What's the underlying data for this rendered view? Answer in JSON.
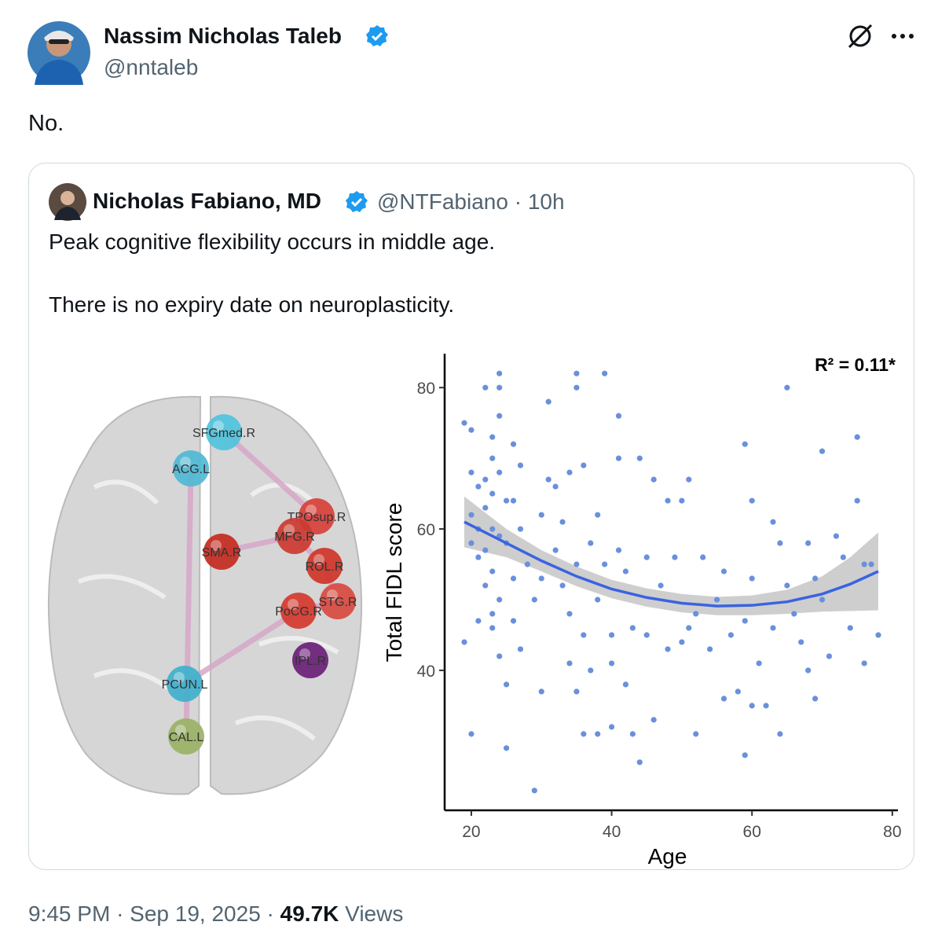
{
  "tweet": {
    "author": {
      "name": "Nassim Nicholas Taleb",
      "handle": "@nntaleb"
    },
    "text": "No.",
    "time": "9:45 PM",
    "date": "Sep 19, 2025",
    "separator": "·",
    "views_count": "49.7K",
    "views_label": "Views"
  },
  "quote": {
    "author": {
      "name": "Nicholas Fabiano, MD",
      "handle": "@NTFabiano",
      "age": "10h"
    },
    "text": [
      "Peak cognitive flexibility occurs in middle age.",
      "There is no expiry date on neuroplasticity."
    ]
  },
  "brain": {
    "nodes": [
      {
        "label": "SFGmed.R",
        "color": "#4fc3dc"
      },
      {
        "label": "ACG.L",
        "color": "#4fb8d4"
      },
      {
        "label": "TPOsup.R",
        "color": "#d8403a"
      },
      {
        "label": "MFG.R",
        "color": "#cc3a30"
      },
      {
        "label": "SMA.R",
        "color": "#c42a20"
      },
      {
        "label": "ROL.R",
        "color": "#cf3428"
      },
      {
        "label": "STG.R",
        "color": "#d84a40"
      },
      {
        "label": "PoCG.R",
        "color": "#d43a2e"
      },
      {
        "label": "IPL.R",
        "color": "#6a1f78"
      },
      {
        "label": "PCUN.L",
        "color": "#3fb0cc"
      },
      {
        "label": "CAL.L",
        "color": "#9ab266"
      }
    ]
  },
  "chart_data": {
    "type": "scatter",
    "annotation": "R² = 0.11*",
    "x_label": "Age",
    "y_label": "Total FIDL score",
    "xlim": [
      16.2,
      80.8
    ],
    "ylim": [
      20.2,
      84.8
    ],
    "xticks": [
      20,
      40,
      60,
      80
    ],
    "yticks": [
      40,
      60,
      80
    ],
    "color": "#6a90dc",
    "x": [
      19,
      19,
      20,
      20,
      20,
      20,
      20,
      21,
      21,
      21,
      21,
      22,
      22,
      22,
      22,
      22,
      23,
      23,
      23,
      23,
      23,
      23,
      23,
      24,
      24,
      24,
      24,
      24,
      24,
      24,
      25,
      25,
      25,
      25,
      26,
      26,
      26,
      26,
      27,
      27,
      27,
      28,
      29,
      29,
      30,
      30,
      30,
      31,
      31,
      32,
      32,
      33,
      33,
      34,
      34,
      34,
      35,
      35,
      35,
      35,
      36,
      36,
      36,
      37,
      37,
      38,
      38,
      38,
      39,
      39,
      40,
      40,
      40,
      41,
      41,
      41,
      42,
      42,
      43,
      43,
      44,
      44,
      45,
      45,
      46,
      46,
      47,
      48,
      48,
      49,
      50,
      50,
      51,
      51,
      52,
      52,
      53,
      54,
      55,
      56,
      56,
      57,
      58,
      59,
      59,
      59,
      60,
      60,
      60,
      61,
      62,
      63,
      63,
      64,
      64,
      65,
      65,
      66,
      67,
      68,
      68,
      69,
      69,
      70,
      70,
      71,
      72,
      73,
      74,
      75,
      75,
      76,
      76,
      77,
      78
    ],
    "y": [
      75,
      44,
      74,
      31,
      68,
      62,
      58,
      66,
      60,
      56,
      47,
      80,
      67,
      63,
      57,
      52,
      73,
      70,
      65,
      60,
      54,
      48,
      46,
      82,
      80,
      76,
      68,
      59,
      50,
      42,
      64,
      58,
      38,
      29,
      72,
      64,
      53,
      47,
      69,
      60,
      43,
      55,
      23,
      50,
      62,
      53,
      37,
      78,
      67,
      66,
      57,
      61,
      52,
      68,
      48,
      41,
      82,
      80,
      55,
      37,
      69,
      45,
      31,
      58,
      40,
      62,
      50,
      31,
      82,
      55,
      45,
      41,
      32,
      76,
      70,
      57,
      54,
      38,
      46,
      31,
      70,
      27,
      56,
      45,
      67,
      33,
      52,
      64,
      43,
      56,
      64,
      44,
      67,
      46,
      48,
      31,
      56,
      43,
      50,
      54,
      36,
      45,
      37,
      72,
      47,
      28,
      64,
      53,
      35,
      41,
      35,
      61,
      46,
      31,
      58,
      80,
      52,
      48,
      44,
      58,
      40,
      53,
      36,
      71,
      50,
      42,
      59,
      56,
      46,
      73,
      64,
      55,
      41,
      55,
      45
    ],
    "fit": {
      "x": [
        19,
        25,
        30,
        35,
        40,
        45,
        50,
        55,
        60,
        65,
        70,
        74,
        78
      ],
      "y": [
        61,
        58,
        55.5,
        53.3,
        51.5,
        50.3,
        49.5,
        49.1,
        49.2,
        49.7,
        50.8,
        52.2,
        54
      ],
      "upper": [
        64.6,
        60,
        57,
        54.7,
        52.8,
        51.6,
        50.8,
        50.4,
        50.6,
        51.4,
        53.3,
        56,
        59.5
      ],
      "lower": [
        57.4,
        56,
        54,
        51.9,
        50.2,
        49,
        48.2,
        47.8,
        47.8,
        48,
        48.3,
        48.4,
        48.5
      ]
    }
  }
}
